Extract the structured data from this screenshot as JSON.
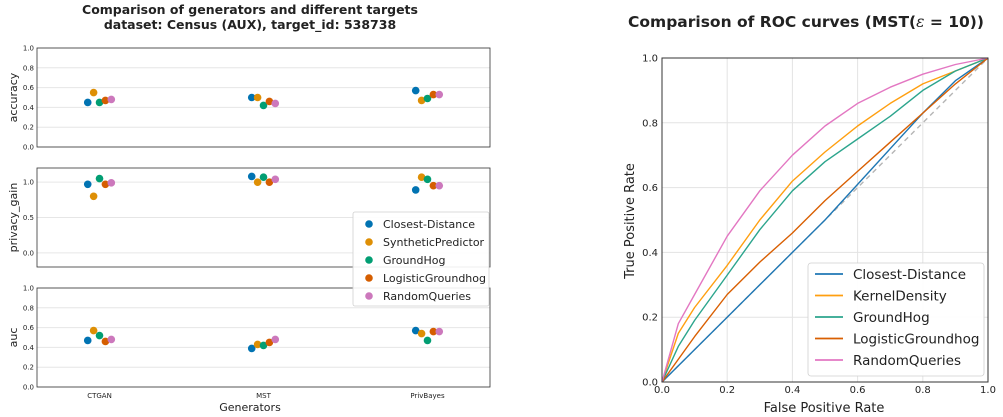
{
  "left_figure": {
    "title_line1": "Comparison of generators and different targets",
    "title_line2": "dataset: Census (AUX), target_id: 538738",
    "xlabel": "Generators",
    "categories": [
      "CTGAN",
      "MST",
      "PrivBayes"
    ],
    "legend": [
      {
        "label": "Closest-Distance",
        "color": "#0173b2"
      },
      {
        "label": "SyntheticPredictor",
        "color": "#de8f05"
      },
      {
        "label": "GroundHog",
        "color": "#029e73"
      },
      {
        "label": "LogisticGroundhog",
        "color": "#d55e00"
      },
      {
        "label": "RandomQueries",
        "color": "#cc78bc"
      }
    ]
  },
  "right_figure": {
    "title": "Comparison of ROC curves (MST(",
    "title_epsilon": "ε",
    "title_tail": " = 10))",
    "xlabel": "False Positive Rate",
    "ylabel": "True Positive Rate",
    "legend": [
      {
        "label": "Closest-Distance",
        "color": "#1f77b4"
      },
      {
        "label": "KernelDensity",
        "color": "#ff9f10"
      },
      {
        "label": "GroundHog",
        "color": "#2ca58d"
      },
      {
        "label": "LogisticGroundhog",
        "color": "#d95f02"
      },
      {
        "label": "RandomQueries",
        "color": "#e377c2"
      }
    ]
  },
  "chart_data": [
    {
      "type": "scatter",
      "ylabel": "accuracy",
      "ylim": [
        0.0,
        1.0
      ],
      "yticks": [
        "0.0",
        "0.2",
        "0.4",
        "0.6",
        "0.8",
        "1.0"
      ],
      "categories": [
        "CTGAN",
        "MST",
        "PrivBayes"
      ],
      "series": [
        {
          "name": "Closest-Distance",
          "values": [
            0.45,
            0.5,
            0.57
          ]
        },
        {
          "name": "SyntheticPredictor",
          "values": [
            0.55,
            0.5,
            0.47
          ]
        },
        {
          "name": "GroundHog",
          "values": [
            0.45,
            0.42,
            0.49
          ]
        },
        {
          "name": "LogisticGroundhog",
          "values": [
            0.47,
            0.46,
            0.53
          ]
        },
        {
          "name": "RandomQueries",
          "values": [
            0.48,
            0.44,
            0.53
          ]
        }
      ]
    },
    {
      "type": "scatter",
      "ylabel": "privacy_gain",
      "ylim": [
        -0.2,
        1.2
      ],
      "yticks": [
        "0.0",
        "0.5",
        "1.0"
      ],
      "categories": [
        "CTGAN",
        "MST",
        "PrivBayes"
      ],
      "series": [
        {
          "name": "Closest-Distance",
          "values": [
            0.97,
            1.08,
            0.89
          ]
        },
        {
          "name": "SyntheticPredictor",
          "values": [
            0.8,
            1.0,
            1.07
          ]
        },
        {
          "name": "GroundHog",
          "values": [
            1.05,
            1.07,
            1.04
          ]
        },
        {
          "name": "LogisticGroundhog",
          "values": [
            0.97,
            1.0,
            0.95
          ]
        },
        {
          "name": "RandomQueries",
          "values": [
            0.99,
            1.04,
            0.95
          ]
        }
      ]
    },
    {
      "type": "scatter",
      "ylabel": "auc",
      "ylim": [
        0.0,
        1.0
      ],
      "yticks": [
        "0.0",
        "0.2",
        "0.4",
        "0.6",
        "0.8",
        "1.0"
      ],
      "categories": [
        "CTGAN",
        "MST",
        "PrivBayes"
      ],
      "series": [
        {
          "name": "Closest-Distance",
          "values": [
            0.47,
            0.39,
            0.57
          ]
        },
        {
          "name": "SyntheticPredictor",
          "values": [
            0.57,
            0.43,
            0.54
          ]
        },
        {
          "name": "GroundHog",
          "values": [
            0.52,
            0.42,
            0.47
          ]
        },
        {
          "name": "LogisticGroundhog",
          "values": [
            0.46,
            0.45,
            0.56
          ]
        },
        {
          "name": "RandomQueries",
          "values": [
            0.48,
            0.48,
            0.56
          ]
        }
      ]
    },
    {
      "type": "line",
      "title": "Comparison of ROC curves (MST(ε = 10))",
      "xlabel": "False Positive Rate",
      "ylabel": "True Positive Rate",
      "xlim": [
        0.0,
        1.0
      ],
      "ylim": [
        0.0,
        1.0
      ],
      "xticks": [
        "0.0",
        "0.2",
        "0.4",
        "0.6",
        "0.8",
        "1.0"
      ],
      "yticks": [
        "0.0",
        "0.2",
        "0.4",
        "0.6",
        "0.8",
        "1.0"
      ],
      "grid": true,
      "legend_position": "lower right",
      "diagonal": true,
      "series": [
        {
          "name": "Closest-Distance",
          "x": [
            0,
            0.1,
            0.2,
            0.3,
            0.4,
            0.5,
            0.6,
            0.7,
            0.8,
            0.9,
            1.0
          ],
          "y": [
            0,
            0.1,
            0.2,
            0.3,
            0.4,
            0.5,
            0.61,
            0.72,
            0.83,
            0.93,
            1.0
          ]
        },
        {
          "name": "KernelDensity",
          "x": [
            0,
            0.05,
            0.1,
            0.2,
            0.3,
            0.4,
            0.5,
            0.6,
            0.7,
            0.8,
            0.9,
            1.0
          ],
          "y": [
            0,
            0.15,
            0.23,
            0.36,
            0.5,
            0.62,
            0.71,
            0.79,
            0.86,
            0.92,
            0.96,
            1.0
          ]
        },
        {
          "name": "GroundHog",
          "x": [
            0,
            0.05,
            0.1,
            0.2,
            0.3,
            0.4,
            0.5,
            0.6,
            0.7,
            0.8,
            0.9,
            1.0
          ],
          "y": [
            0,
            0.11,
            0.19,
            0.33,
            0.47,
            0.59,
            0.68,
            0.75,
            0.82,
            0.9,
            0.96,
            1.0
          ]
        },
        {
          "name": "LogisticGroundhog",
          "x": [
            0,
            0.1,
            0.2,
            0.3,
            0.4,
            0.5,
            0.6,
            0.7,
            0.8,
            0.9,
            1.0
          ],
          "y": [
            0,
            0.14,
            0.27,
            0.37,
            0.46,
            0.56,
            0.65,
            0.74,
            0.83,
            0.92,
            1.0
          ]
        },
        {
          "name": "RandomQueries",
          "x": [
            0,
            0.05,
            0.1,
            0.2,
            0.3,
            0.4,
            0.5,
            0.6,
            0.7,
            0.8,
            0.9,
            1.0
          ],
          "y": [
            0,
            0.18,
            0.27,
            0.45,
            0.59,
            0.7,
            0.79,
            0.86,
            0.91,
            0.95,
            0.98,
            1.0
          ]
        }
      ]
    }
  ]
}
